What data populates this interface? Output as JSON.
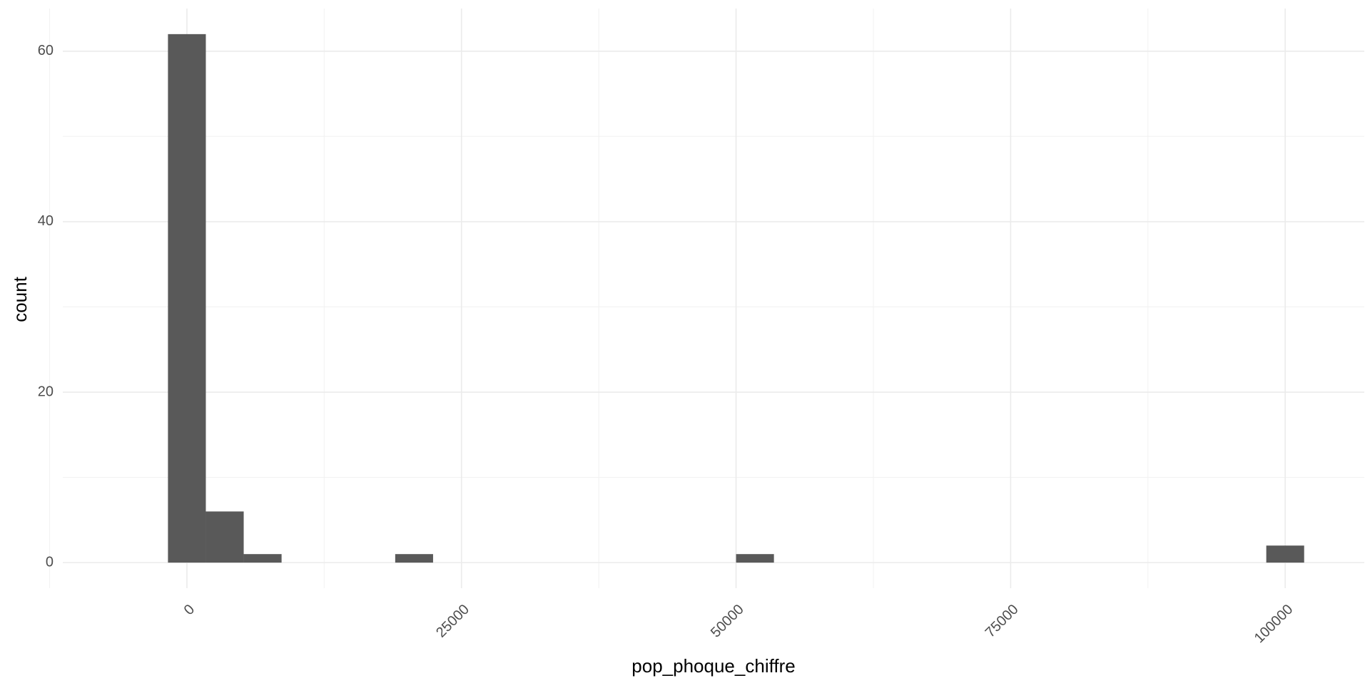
{
  "chart_data": {
    "type": "bar",
    "subtype": "histogram",
    "xlabel": "pop_phoque_chiffre",
    "ylabel": "count",
    "xlim": [
      -11300,
      107200
    ],
    "ylim": [
      -3,
      65
    ],
    "x_ticks": [
      0,
      25000,
      50000,
      75000,
      100000
    ],
    "x_tick_labels": [
      "0",
      "25000",
      "50000",
      "75000",
      "100000"
    ],
    "x_minor_ticks": [
      -12500,
      12500,
      37500,
      62500,
      87500
    ],
    "y_ticks": [
      0,
      20,
      40,
      60
    ],
    "y_tick_labels": [
      "0",
      "20",
      "40",
      "60"
    ],
    "y_minor_ticks": [
      10,
      30,
      50
    ],
    "bin_width": 3448,
    "bins": [
      {
        "center": 0,
        "count": 62
      },
      {
        "center": 3448,
        "count": 6
      },
      {
        "center": 6896,
        "count": 1
      },
      {
        "center": 20690,
        "count": 1
      },
      {
        "center": 51725,
        "count": 1
      },
      {
        "center": 100000,
        "count": 2
      }
    ],
    "bar_color": "#595959",
    "grid": true,
    "x_tick_rotation": -45,
    "theme": "minimal"
  }
}
